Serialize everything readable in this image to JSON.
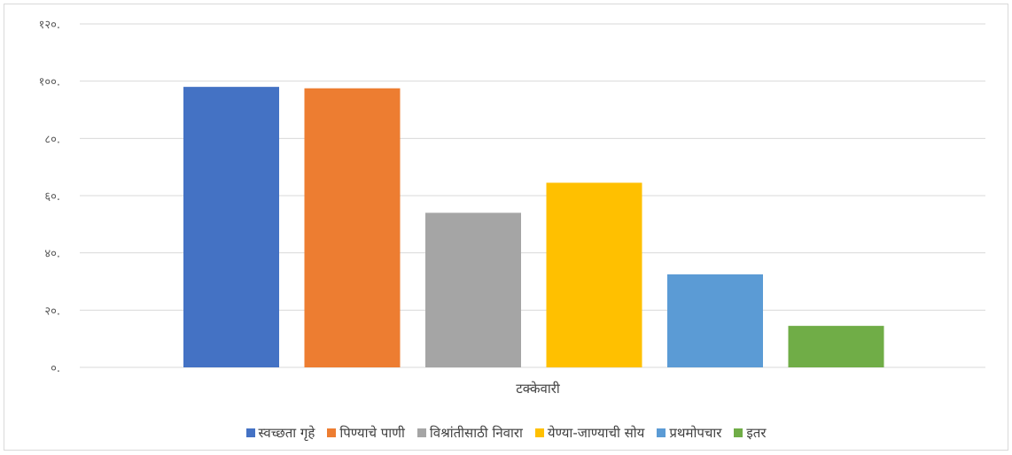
{
  "chart_data": {
    "type": "bar",
    "title": "",
    "xlabel": "",
    "ylabel": "",
    "categories": [
      "टक्केवारी"
    ],
    "ylim": [
      0,
      120
    ],
    "yticks": [
      0,
      20,
      40,
      60,
      80,
      100,
      120
    ],
    "ytick_labels": [
      "०.",
      "२०.",
      "४०.",
      "६०.",
      "८०.",
      "१००.",
      "१२०."
    ],
    "grid": true,
    "legend_position": "bottom",
    "series": [
      {
        "name": "स्वच्छता गृहे",
        "values": [
          98
        ],
        "color": "#4472C4"
      },
      {
        "name": "पिण्याचे पाणी",
        "values": [
          97.5
        ],
        "color": "#ED7D31"
      },
      {
        "name": "विश्रांतीसाठी निवारा",
        "values": [
          54
        ],
        "color": "#A5A5A5"
      },
      {
        "name": "येण्या-जाण्याची सोय",
        "values": [
          64.5
        ],
        "color": "#FFC000"
      },
      {
        "name": "प्रथमोपचार",
        "values": [
          32.5
        ],
        "color": "#5B9BD5"
      },
      {
        "name": "इतर",
        "values": [
          14.5
        ],
        "color": "#70AD47"
      }
    ]
  }
}
